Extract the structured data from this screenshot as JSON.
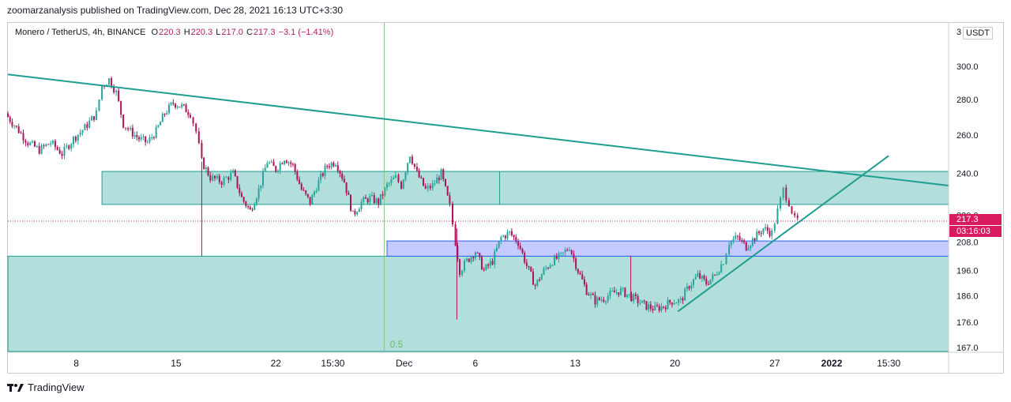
{
  "header": {
    "caption": "zoomarzanalysis published on TradingView.com, Dec 28, 2021 16:13 UTC+3:30",
    "symbol": "Monero / TetherUS, 4h, BINANCE",
    "open_label": "O",
    "open": "220.3",
    "high_label": "H",
    "high": "220.3",
    "low_label": "L",
    "low": "217.0",
    "close_label": "C",
    "close": "217.3",
    "change": "−3.1 (−1.41%)"
  },
  "price_axis": {
    "currency": "USDT",
    "currency_prefix": "3",
    "current_price": "217.3",
    "countdown": "03:16:03"
  },
  "footer": {
    "brand": "TradingView"
  },
  "colors": {
    "up": "#26a69a",
    "down": "#ad1457",
    "zone": "#b2dfdb",
    "zone_border": "#1f9e8f",
    "blue_zone": "#c5cbff",
    "blue_border": "#2962ff",
    "trend": "#1f9e8f",
    "vline": "#81c784",
    "price_line": "#d81b60"
  },
  "chart_data": {
    "type": "candlestick",
    "title": "Monero / TetherUS, 4h, BINANCE",
    "y_ticks": [
      300.0,
      280.0,
      260.0,
      240.0,
      220.0,
      208.0,
      196.0,
      186.0,
      176.0,
      167.0
    ],
    "y_tick_labels": [
      "300.0",
      "280.0",
      "260.0",
      "240.0",
      "220.0",
      "208.0",
      "196.0",
      "186.0",
      "176.0",
      "167.0"
    ],
    "y_scale": "log",
    "ylim": [
      164,
      316
    ],
    "x_ticks": [
      {
        "label": "8",
        "day": 8
      },
      {
        "label": "15",
        "day": 15
      },
      {
        "label": "22",
        "day": 22
      },
      {
        "label": "15:30",
        "day": 26
      },
      {
        "label": "Dec",
        "day": 31
      },
      {
        "label": "6",
        "day": 36
      },
      {
        "label": "13",
        "day": 43
      },
      {
        "label": "20",
        "day": 50
      },
      {
        "label": "27",
        "day": 57
      },
      {
        "label": "2022",
        "day": 61
      },
      {
        "label": "15:30",
        "day": 65
      }
    ],
    "xlim": [
      3.2,
      69.2
    ],
    "series_closes": [
      [
        3.2,
        270
      ],
      [
        3.8,
        264
      ],
      [
        4.6,
        256
      ],
      [
        5.4,
        252
      ],
      [
        6.2,
        256
      ],
      [
        7.0,
        250
      ],
      [
        7.8,
        258
      ],
      [
        8.6,
        264
      ],
      [
        9.4,
        272
      ],
      [
        9.8,
        288
      ],
      [
        10.3,
        292
      ],
      [
        10.8,
        284
      ],
      [
        11.3,
        266
      ],
      [
        11.8,
        262
      ],
      [
        12.4,
        258
      ],
      [
        13.0,
        256
      ],
      [
        13.6,
        262
      ],
      [
        14.2,
        272
      ],
      [
        14.8,
        278
      ],
      [
        15.4,
        276
      ],
      [
        16.0,
        272
      ],
      [
        16.4,
        262
      ],
      [
        16.8,
        246
      ],
      [
        17.4,
        238
      ],
      [
        18.2,
        236
      ],
      [
        19.0,
        240
      ],
      [
        19.6,
        228
      ],
      [
        20.2,
        222
      ],
      [
        20.8,
        232
      ],
      [
        21.4,
        246
      ],
      [
        22.0,
        242
      ],
      [
        22.6,
        248
      ],
      [
        23.2,
        244
      ],
      [
        23.8,
        232
      ],
      [
        24.4,
        226
      ],
      [
        25.0,
        236
      ],
      [
        25.6,
        244
      ],
      [
        26.2,
        246
      ],
      [
        26.8,
        236
      ],
      [
        27.4,
        220
      ],
      [
        28.0,
        226
      ],
      [
        28.6,
        228
      ],
      [
        29.2,
        226
      ],
      [
        29.8,
        234
      ],
      [
        30.4,
        238
      ],
      [
        30.8,
        234
      ],
      [
        31.4,
        250
      ],
      [
        31.9,
        240
      ],
      [
        32.5,
        232
      ],
      [
        33.0,
        234
      ],
      [
        33.6,
        240
      ],
      [
        34.2,
        224
      ],
      [
        34.6,
        208
      ],
      [
        34.9,
        196
      ],
      [
        35.4,
        200
      ],
      [
        36.0,
        204
      ],
      [
        36.6,
        196
      ],
      [
        37.2,
        200
      ],
      [
        37.8,
        210
      ],
      [
        38.4,
        212
      ],
      [
        39.0,
        208
      ],
      [
        39.6,
        198
      ],
      [
        40.2,
        190
      ],
      [
        40.8,
        196
      ],
      [
        41.4,
        200
      ],
      [
        42.0,
        202
      ],
      [
        42.6,
        206
      ],
      [
        43.2,
        196
      ],
      [
        43.8,
        188
      ],
      [
        44.4,
        184
      ],
      [
        45.0,
        185
      ],
      [
        45.6,
        187
      ],
      [
        46.2,
        188
      ],
      [
        46.8,
        186
      ],
      [
        47.4,
        184
      ],
      [
        48.0,
        182
      ],
      [
        48.6,
        181
      ],
      [
        49.2,
        182
      ],
      [
        49.8,
        184
      ],
      [
        50.4,
        184
      ],
      [
        51.0,
        190
      ],
      [
        51.6,
        194
      ],
      [
        52.2,
        191
      ],
      [
        52.8,
        194
      ],
      [
        53.4,
        200
      ],
      [
        53.8,
        208
      ],
      [
        54.4,
        210
      ],
      [
        55.0,
        206
      ],
      [
        55.6,
        210
      ],
      [
        56.2,
        214
      ],
      [
        56.8,
        212
      ],
      [
        57.2,
        222
      ],
      [
        57.6,
        232
      ],
      [
        58.0,
        226
      ],
      [
        58.4,
        218
      ],
      [
        58.8,
        217.3
      ]
    ]
  },
  "annotations": {
    "fib_label": "0.5"
  }
}
